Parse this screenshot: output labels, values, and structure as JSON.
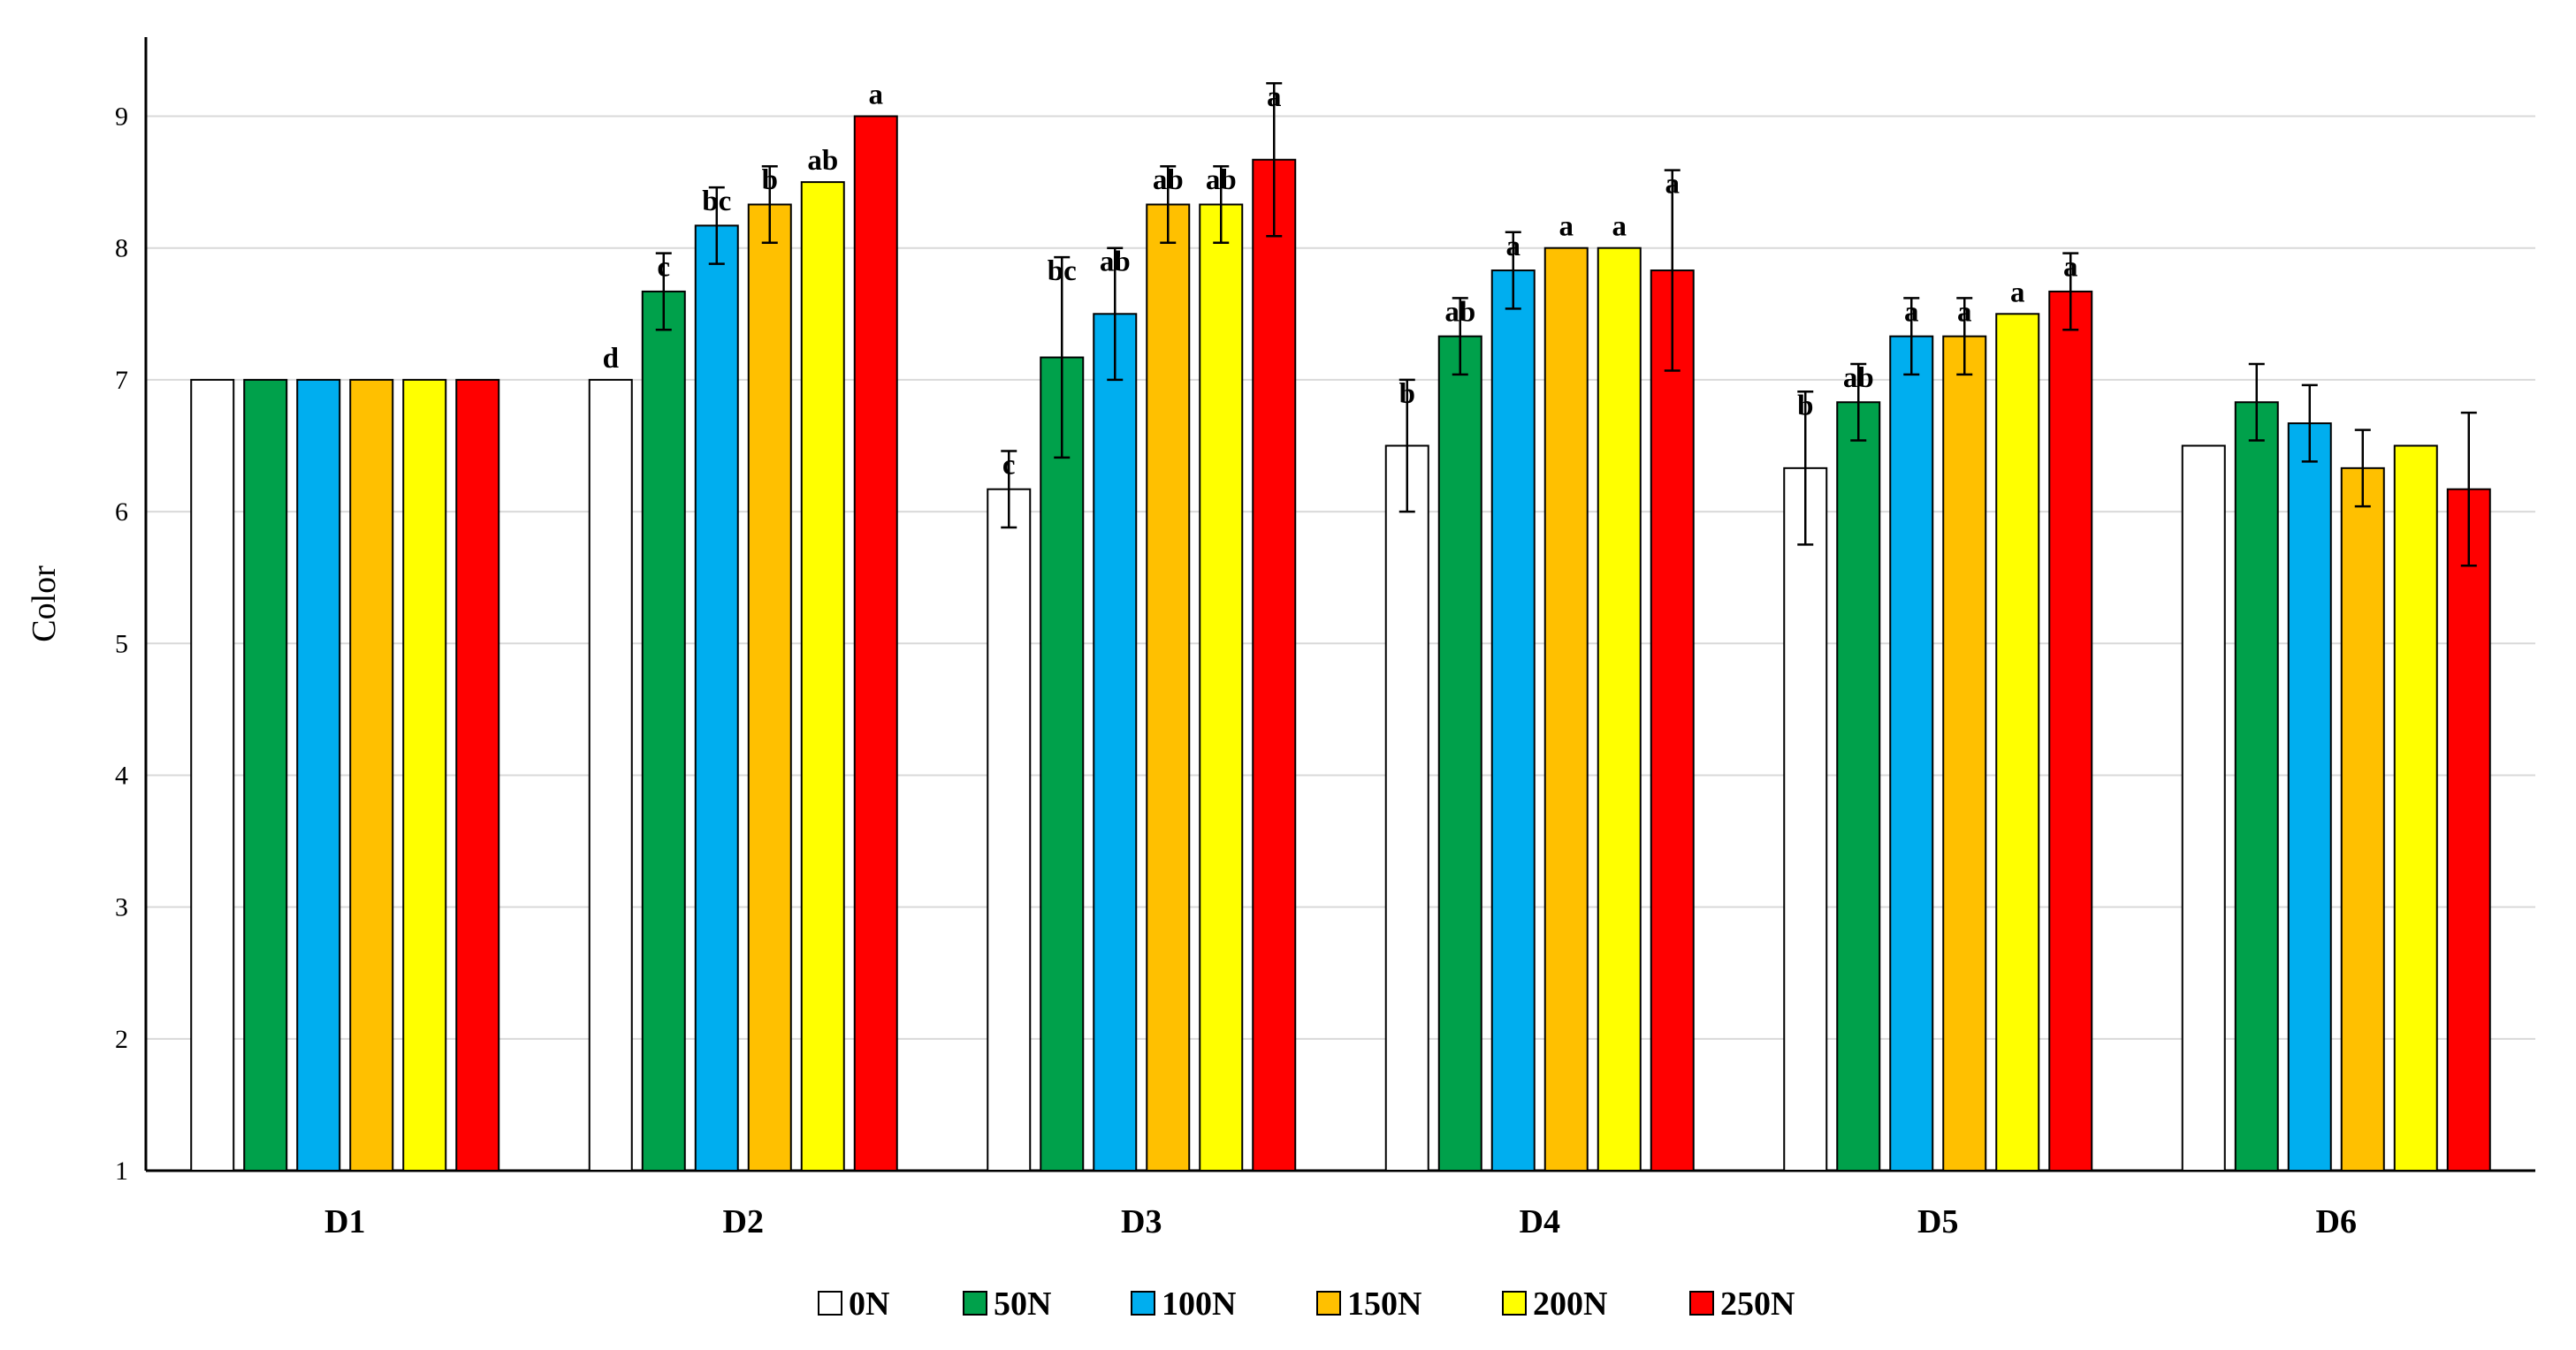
{
  "chart_data": {
    "type": "bar",
    "title": "",
    "xlabel": "",
    "ylabel": "Color",
    "ylim": [
      1,
      9.6
    ],
    "yticks": [
      1,
      2,
      3,
      4,
      5,
      6,
      7,
      8,
      9
    ],
    "grid": true,
    "legend_position": "bottom",
    "categories": [
      "D1",
      "D2",
      "D3",
      "D4",
      "D5",
      "D6"
    ],
    "series": [
      {
        "name": "0N",
        "color": "#ffffff",
        "values": [
          7.0,
          7.0,
          6.17,
          6.5,
          6.33,
          6.5
        ],
        "errors": [
          0,
          0,
          0.29,
          0.5,
          0.58,
          0
        ],
        "labels": [
          "",
          "d",
          "c",
          "b",
          "b",
          ""
        ]
      },
      {
        "name": "50N",
        "color": "#00a14b",
        "values": [
          7.0,
          7.67,
          7.17,
          7.33,
          6.83,
          6.83
        ],
        "errors": [
          0,
          0.29,
          0.76,
          0.29,
          0.29,
          0.29
        ],
        "labels": [
          "",
          "c",
          "bc",
          "ab",
          "ab",
          ""
        ]
      },
      {
        "name": "100N",
        "color": "#00aeef",
        "values": [
          7.0,
          8.17,
          7.5,
          7.83,
          7.33,
          6.67
        ],
        "errors": [
          0,
          0.29,
          0.5,
          0.29,
          0.29,
          0.29
        ],
        "labels": [
          "",
          "bc",
          "ab",
          "a",
          "a",
          ""
        ]
      },
      {
        "name": "150N",
        "color": "#ffc000",
        "values": [
          7.0,
          8.33,
          8.33,
          8.0,
          7.33,
          6.33
        ],
        "errors": [
          0,
          0.29,
          0.29,
          0,
          0.29,
          0.29
        ],
        "labels": [
          "",
          "b",
          "ab",
          "a",
          "a",
          ""
        ]
      },
      {
        "name": "200N",
        "color": "#ffff00",
        "values": [
          7.0,
          8.5,
          8.33,
          8.0,
          7.5,
          6.5
        ],
        "errors": [
          0,
          0,
          0.29,
          0,
          0,
          0
        ],
        "labels": [
          "",
          "ab",
          "ab",
          "a",
          "a",
          ""
        ]
      },
      {
        "name": "250N",
        "color": "#ff0000",
        "values": [
          7.0,
          9.0,
          8.67,
          7.83,
          7.67,
          6.17
        ],
        "errors": [
          0,
          0,
          0.58,
          0.76,
          0.29,
          0.58
        ],
        "labels": [
          "",
          "a",
          "a",
          "a",
          "a",
          ""
        ]
      }
    ]
  }
}
